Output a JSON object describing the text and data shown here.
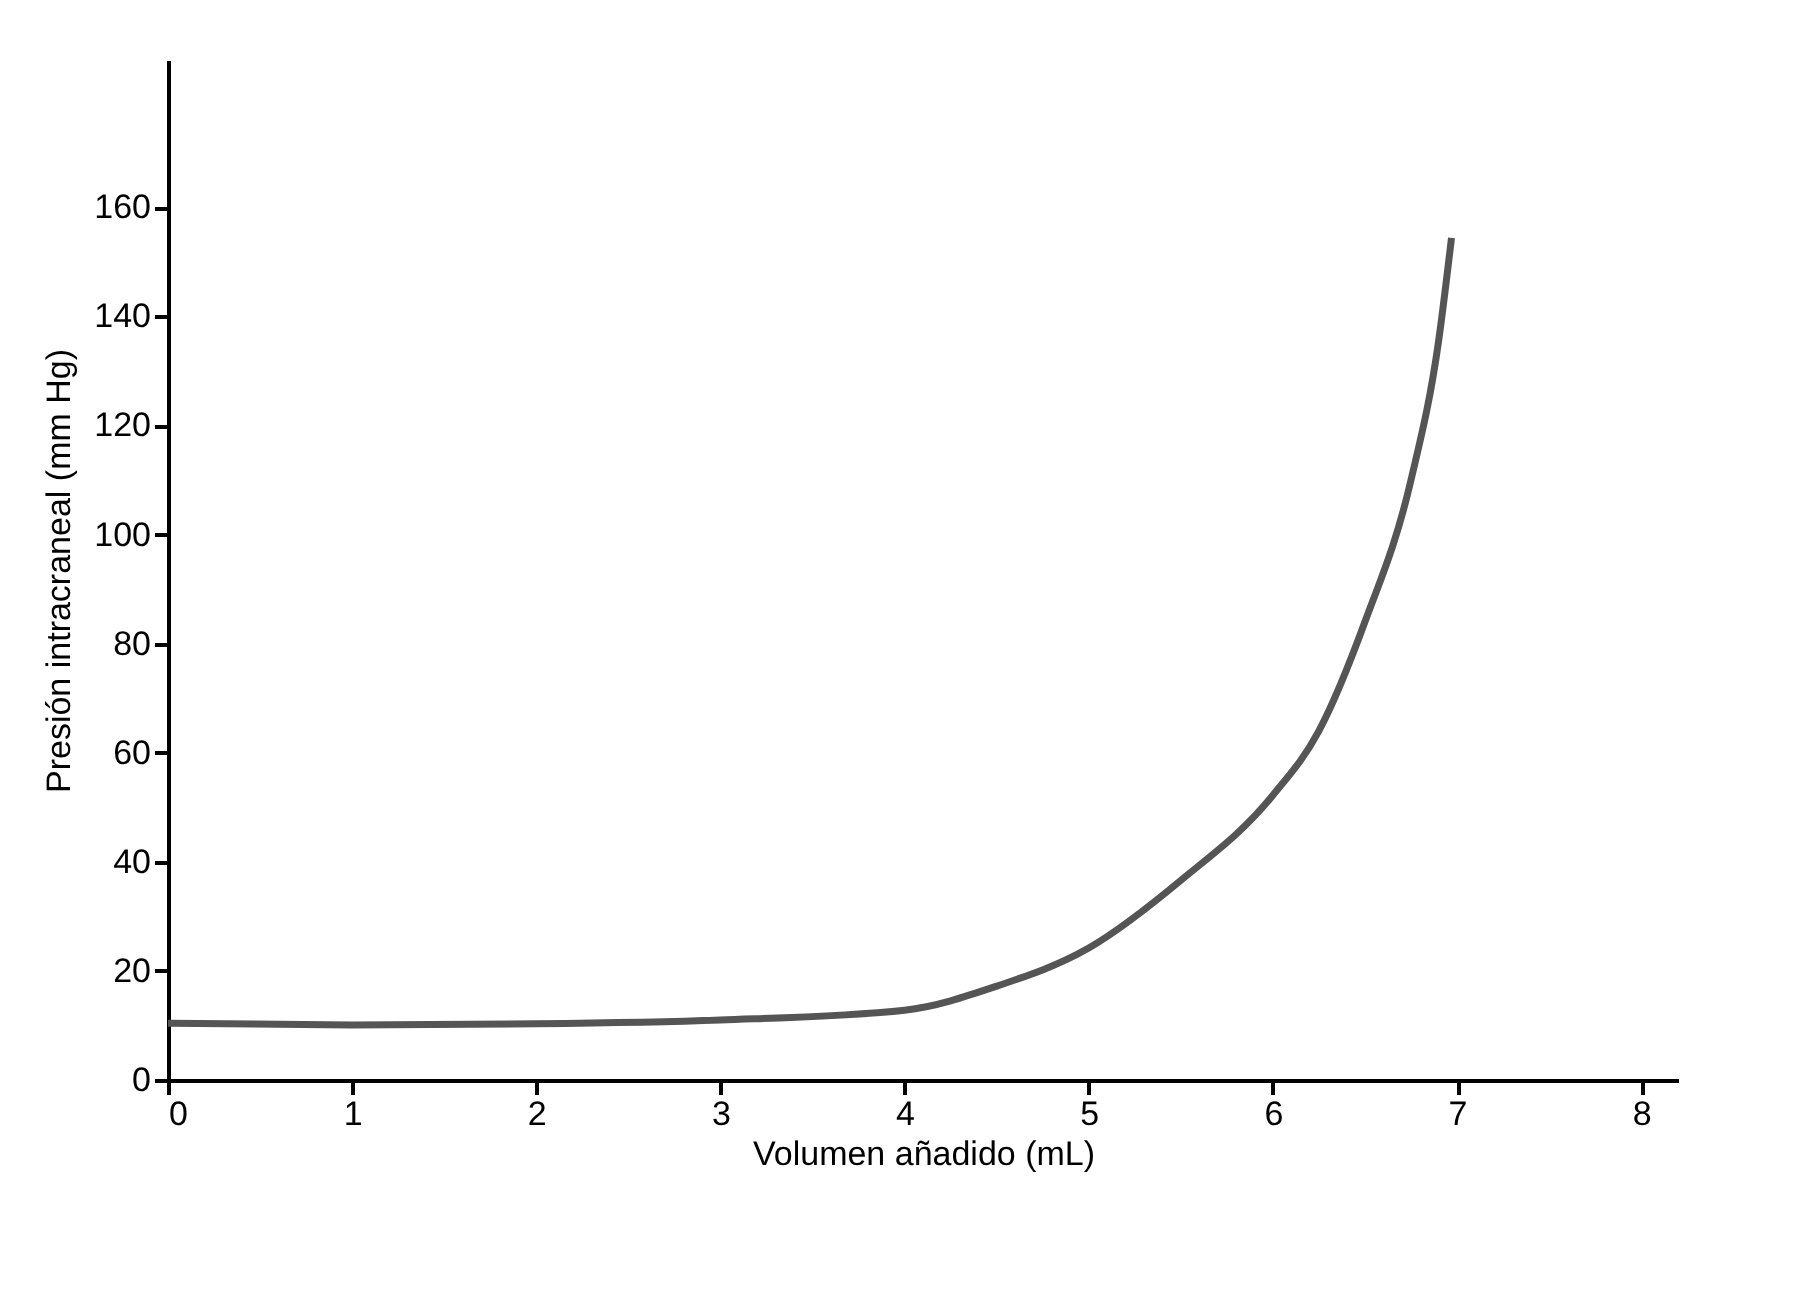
{
  "chart_data": {
    "type": "line",
    "xlabel": "Volumen añadido  (mL)",
    "ylabel": "Presión intracraneal (mm Hg)",
    "x": [
      0,
      1,
      2,
      3,
      4,
      4.5,
      5,
      5.5,
      6,
      6.25,
      6.5,
      6.75,
      6.9,
      6.97
    ],
    "series": [
      {
        "color": "#555555",
        "values": [
          10.4,
          10.1,
          10.3,
          11,
          12.8,
          17.2,
          24.2,
          36.6,
          52.2,
          64,
          84,
          110,
          135.5,
          154.4
        ]
      }
    ],
    "xlim": [
      0,
      8.2
    ],
    "xticks": [
      0,
      1,
      2,
      3,
      4,
      5,
      6,
      7,
      8
    ],
    "ylim": [
      0,
      187
    ],
    "yticks": [
      0,
      20,
      40,
      60,
      80,
      100,
      120,
      140,
      160
    ],
    "grid": false,
    "legend": false,
    "marker": "none",
    "line_style": "solid"
  }
}
